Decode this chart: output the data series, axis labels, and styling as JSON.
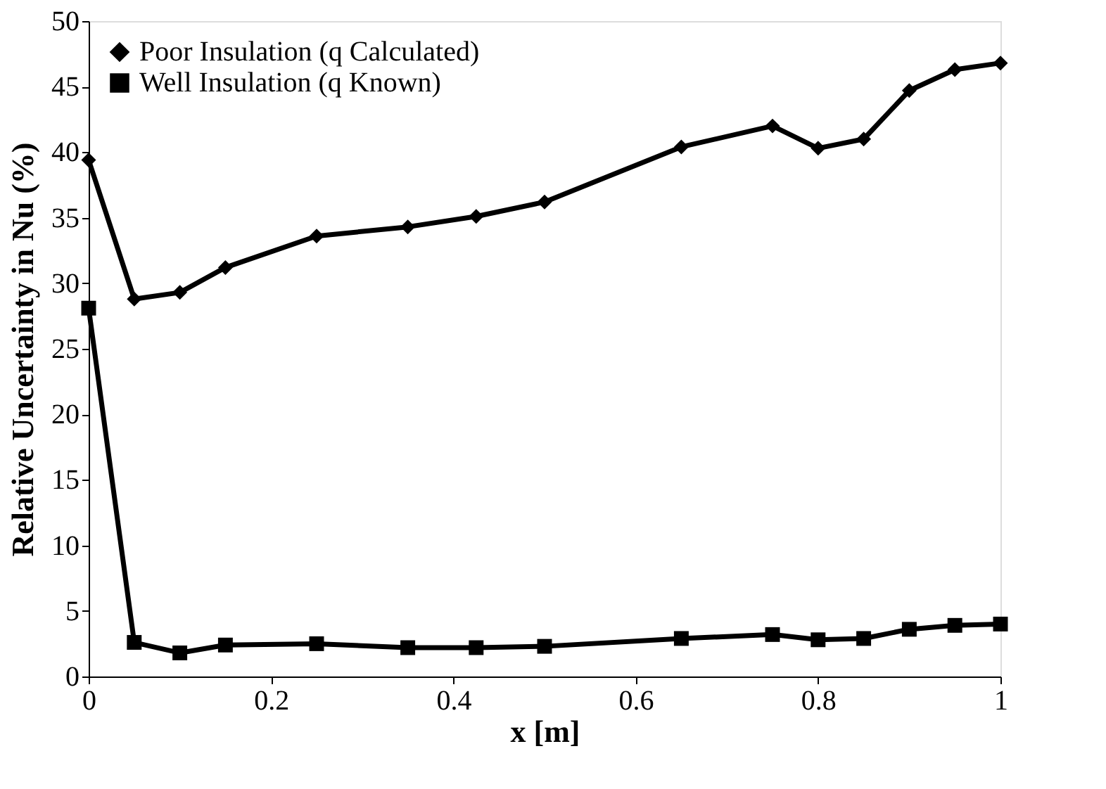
{
  "chart_data": {
    "type": "line",
    "xlabel": "x [m]",
    "ylabel": "Relative Uncertainty in Nu (%)",
    "x": [
      0,
      0.05,
      0.1,
      0.15,
      0.25,
      0.35,
      0.425,
      0.5,
      0.65,
      0.75,
      0.8,
      0.85,
      0.9,
      0.95,
      1.0
    ],
    "series": [
      {
        "name": "Poor Insulation (q Calculated)",
        "color": "#000000",
        "marker": "diamond",
        "values": [
          39.4,
          28.8,
          29.3,
          31.2,
          33.6,
          34.3,
          35.1,
          36.2,
          40.4,
          42.0,
          40.3,
          41.0,
          44.7,
          46.3,
          46.8
        ]
      },
      {
        "name": "Well Insulation (q Known)",
        "color": "#000000",
        "marker": "square",
        "values": [
          28.1,
          2.6,
          1.8,
          2.4,
          2.5,
          2.2,
          2.2,
          2.3,
          2.9,
          3.2,
          2.8,
          2.9,
          3.6,
          3.9,
          4.0
        ]
      }
    ],
    "xlim": [
      0,
      1
    ],
    "xticks": [
      0,
      0.2,
      0.4,
      0.6,
      0.8,
      1
    ],
    "ylim": [
      0,
      50
    ],
    "yticks": [
      0,
      5,
      10,
      15,
      20,
      25,
      30,
      35,
      40,
      45,
      50
    ],
    "grid": false,
    "legend": "top left",
    "line_style": "solid"
  }
}
